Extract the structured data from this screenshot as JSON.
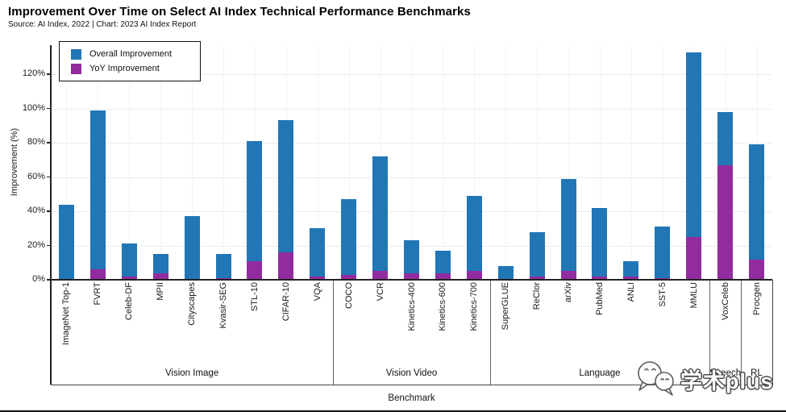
{
  "title": "Improvement Over Time on Select AI Index Technical Performance Benchmarks",
  "subtitle": "Source: AI Index, 2022 | Chart: 2023 AI Index Report",
  "legend": {
    "overall_label": "Overall Improvement",
    "yoy_label": "YoY Improvement"
  },
  "colors": {
    "overall": "#2176B6",
    "yoy": "#922C9E",
    "axis": "#222222",
    "gridline": "#ececec"
  },
  "watermark": {
    "icon": "wechat-chat-bubbles-icon",
    "text": "学术plus"
  },
  "chart_data": {
    "type": "bar",
    "title": "Improvement Over Time on Select AI Index Technical Performance Benchmarks",
    "xlabel": "Benchmark",
    "ylabel": "Improvement (%)",
    "ylim": [
      0,
      137
    ],
    "yticks": [
      "0%",
      "20%",
      "40%",
      "60%",
      "80%",
      "100%",
      "120%"
    ],
    "ytick_values": [
      0,
      20,
      40,
      60,
      80,
      100,
      120
    ],
    "grid": "on",
    "legend_position": "upper-left",
    "categories": [
      "ImageNet Top-1",
      "FVRT",
      "Celeb-DF",
      "MPII",
      "Cityscapes",
      "Kvasir-SEG",
      "STL-10",
      "CIFAR-10",
      "VQA",
      "COCO",
      "VCR",
      "Kinetics-400",
      "Kinetics-600",
      "Kinetics-700",
      "SuperGLUE",
      "ReClor",
      "arXiv",
      "PubMed",
      "ANLI",
      "SST-5",
      "MMLU",
      "VoxCeleb",
      "Procgen"
    ],
    "groups": [
      {
        "label": "Vision Image",
        "count": 9
      },
      {
        "label": "Vision Video",
        "count": 5
      },
      {
        "label": "Language",
        "count": 7
      },
      {
        "label": "Speech",
        "count": 1
      },
      {
        "label": "RL",
        "count": 1
      }
    ],
    "series": [
      {
        "name": "Overall Improvement",
        "color": "#2176B6",
        "values": [
          44,
          99,
          21,
          15,
          37,
          15,
          81,
          93,
          30,
          47,
          72,
          23,
          17,
          49,
          8,
          28,
          59,
          42,
          11,
          31,
          133,
          98,
          79
        ]
      },
      {
        "name": "YoY Improvement",
        "color": "#922C9E",
        "values": [
          0,
          6,
          2,
          4,
          0,
          1,
          11,
          16,
          2,
          3,
          5,
          4,
          4,
          5,
          0,
          2,
          5,
          2,
          2,
          1,
          25,
          67,
          12
        ]
      }
    ]
  }
}
